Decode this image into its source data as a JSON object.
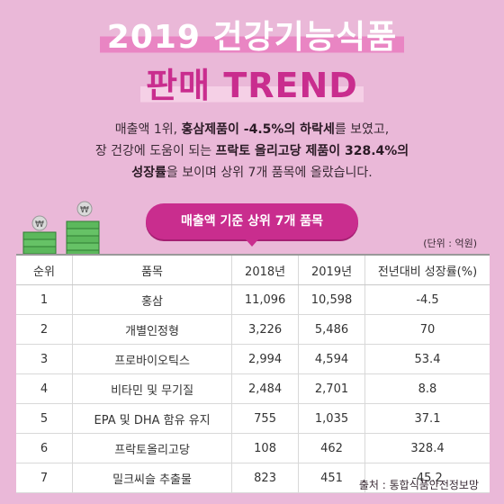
{
  "title": {
    "line1": "2019 건강기능식품",
    "line2": "판매 TREND"
  },
  "desc": {
    "p1": "매출액 1위, ",
    "b1": "홍삼제품이 -4.5%의 하락세",
    "p2": "를 보였고,",
    "p3": "장 건강에 도움이 되는 ",
    "b2": "프락토 올리고당 제품이 328.4%의",
    "b3": "성장률",
    "p4": "을 보이며 상위 7개 품목에 올랐습니다."
  },
  "pill": "매출액 기준 상위 7개 품목",
  "unit": "(단위 : 억원)",
  "table": {
    "headers": [
      "순위",
      "품목",
      "2018년",
      "2019년",
      "전년대비 성장률(%)"
    ],
    "rows": [
      [
        "1",
        "홍삼",
        "11,096",
        "10,598",
        "-4.5"
      ],
      [
        "2",
        "개별인정형",
        "3,226",
        "5,486",
        "70"
      ],
      [
        "3",
        "프로바이오틱스",
        "2,994",
        "4,594",
        "53.4"
      ],
      [
        "4",
        "비타민 및 무기질",
        "2,484",
        "2,701",
        "8.8"
      ],
      [
        "5",
        "EPA 및 DHA 함유 유지",
        "755",
        "1,035",
        "37.1"
      ],
      [
        "6",
        "프락토올리고당",
        "108",
        "462",
        "328.4"
      ],
      [
        "7",
        "밀크씨슬 추출물",
        "823",
        "451",
        "-45.2"
      ]
    ]
  },
  "source": "출처 : 통합식품안전정보망",
  "colors": {
    "background": "#eab8d8",
    "accent": "#c92d8e",
    "highlight": "#e985c3"
  }
}
